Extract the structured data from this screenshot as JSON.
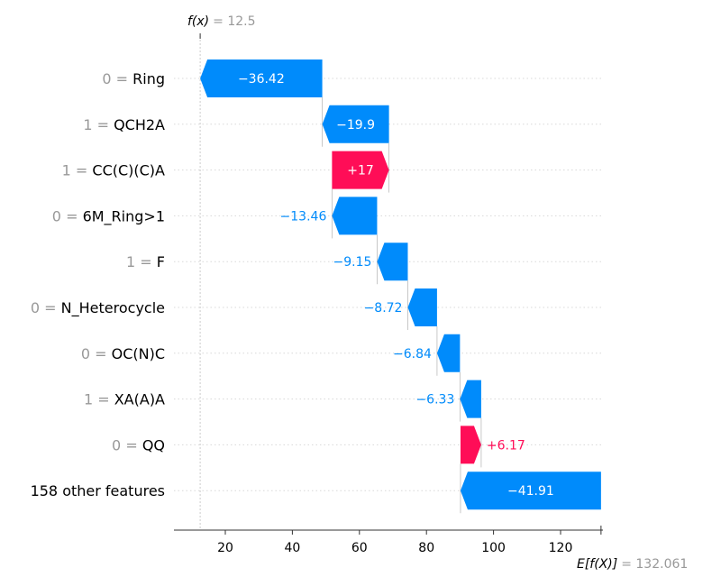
{
  "chart_data": {
    "type": "waterfall",
    "fx_symbol": "f(x)",
    "fx_value_text": "= 12.5",
    "fx_value": 12.5,
    "efx_symbol": "E[f(X)]",
    "efx_value_text": "= 132.061",
    "base_value": 132.061,
    "xlim": [
      5,
      133
    ],
    "x_ticks": [
      20,
      40,
      60,
      80,
      100,
      120
    ],
    "positive_color": "#ff0d57",
    "negative_color": "#008bfb",
    "features": [
      {
        "value": "0",
        "name": "Ring",
        "shap": -36.42,
        "label": "−36.42"
      },
      {
        "value": "1",
        "name": "QCH2A",
        "shap": -19.9,
        "label": "−19.9"
      },
      {
        "value": "1",
        "name": "CC(C)(C)A",
        "shap": 17,
        "label": "+17"
      },
      {
        "value": "0",
        "name": "6M_Ring>1",
        "shap": -13.46,
        "label": "−13.46"
      },
      {
        "value": "1",
        "name": "F",
        "shap": -9.15,
        "label": "−9.15"
      },
      {
        "value": "0",
        "name": "N_Heterocycle",
        "shap": -8.72,
        "label": "−8.72"
      },
      {
        "value": "0",
        "name": "OC(N)C",
        "shap": -6.84,
        "label": "−6.84"
      },
      {
        "value": "1",
        "name": "XA(A)A",
        "shap": -6.33,
        "label": "−6.33"
      },
      {
        "value": "0",
        "name": "QQ",
        "shap": 6.17,
        "label": "+6.17"
      },
      {
        "value": "",
        "name": "158 other features",
        "shap": -41.91,
        "label": "−41.91"
      }
    ]
  }
}
